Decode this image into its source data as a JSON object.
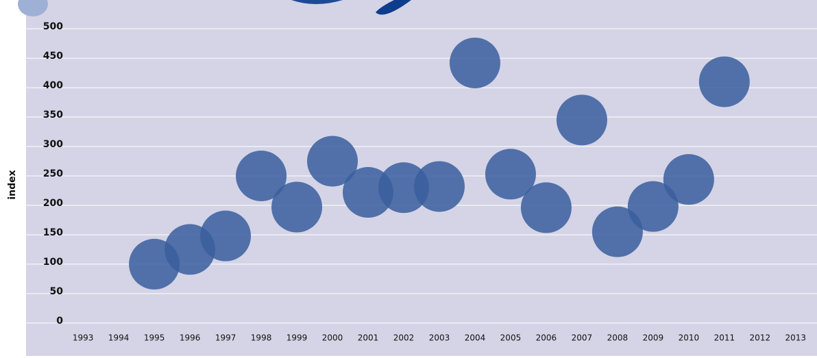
{
  "chart_data": {
    "type": "scatter",
    "y_label": "index",
    "x": [
      1995,
      1996,
      1997,
      1998,
      1999,
      2000,
      2001,
      2002,
      2003,
      2004,
      2005,
      2006,
      2007,
      2008,
      2009,
      2010,
      2011
    ],
    "series": [
      {
        "color": "#3a5e9e",
        "values": [
          100,
          125,
          148,
          250,
          197,
          275,
          222,
          230,
          232,
          442,
          253,
          196,
          345,
          155,
          198,
          244,
          410
        ]
      }
    ],
    "xlim": [
      1991.4,
      2013.6
    ],
    "xticks": [
      1993,
      1994,
      1995,
      1996,
      1997,
      1998,
      1999,
      2000,
      2001,
      2002,
      2003,
      2004,
      2005,
      2006,
      2007,
      2008,
      2009,
      2010,
      2011,
      2012,
      2013
    ],
    "ylim": [
      -56,
      549
    ],
    "yticks": [
      0,
      50,
      100,
      150,
      200,
      250,
      300,
      350,
      400,
      450,
      500
    ],
    "grid": true
  }
}
